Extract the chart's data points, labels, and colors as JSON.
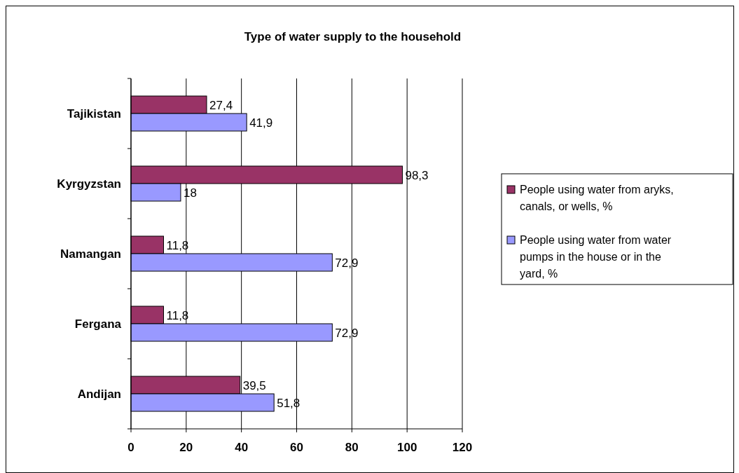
{
  "chart_data": {
    "type": "bar",
    "orientation": "horizontal",
    "title": "Type of water supply to the household",
    "categories": [
      "Tajikistan",
      "Kyrgyzstan",
      "Namangan",
      "Fergana",
      "Andijan"
    ],
    "series": [
      {
        "name": "People using water from aryks, canals, or wells, %",
        "color": "#993366",
        "values": [
          27.4,
          98.3,
          11.8,
          11.8,
          39.5
        ],
        "value_labels": [
          "27,4",
          "98,3",
          "11,8",
          "11,8",
          "39,5"
        ]
      },
      {
        "name": "People using water from water pumps in the house or in the yard, %",
        "color": "#9999ff",
        "values": [
          41.9,
          18,
          72.9,
          72.9,
          51.8
        ],
        "value_labels": [
          "41,9",
          "18",
          "72,9",
          "72,9",
          "51,8"
        ]
      }
    ],
    "xlim": [
      0,
      120
    ],
    "xticks": [
      0,
      20,
      40,
      60,
      80,
      100,
      120
    ],
    "grid": "x",
    "legend": "right"
  }
}
